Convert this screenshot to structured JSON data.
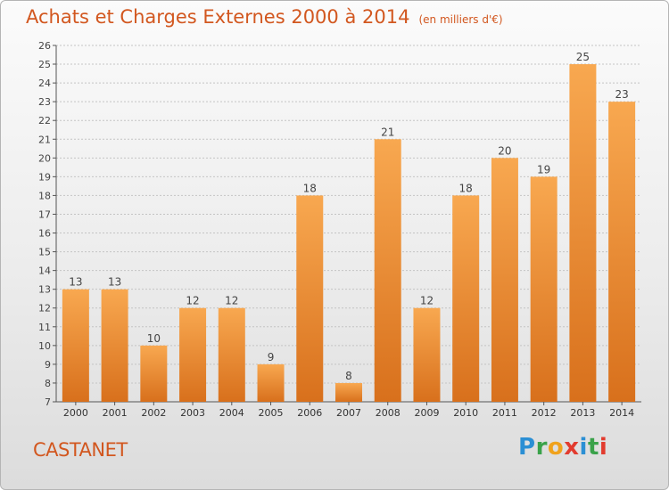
{
  "title": "Achats et Charges Externes 2000 à 2014",
  "subtitle": "(en milliers d'€)",
  "commune": "CASTANET",
  "logo": {
    "text": "Proxiti",
    "letter_colors": [
      "#2b8fd4",
      "#3aa24a",
      "#f0a21c",
      "#e23b2e",
      "#2b8fd4",
      "#3aa24a",
      "#e23b2e"
    ]
  },
  "colors": {
    "bar_top": "#f8a850",
    "bar_bottom": "#d8701c",
    "title": "#d2571f"
  },
  "chart_data": {
    "type": "bar",
    "categories": [
      "2000",
      "2001",
      "2002",
      "2003",
      "2004",
      "2005",
      "2006",
      "2007",
      "2008",
      "2009",
      "2010",
      "2011",
      "2012",
      "2013",
      "2014"
    ],
    "values": [
      13,
      13,
      10,
      12,
      12,
      9,
      18,
      8,
      21,
      12,
      18,
      20,
      19,
      25,
      23
    ],
    "ylim": [
      7,
      26
    ],
    "yticks": [
      7,
      8,
      9,
      10,
      11,
      12,
      13,
      14,
      15,
      16,
      17,
      18,
      19,
      20,
      21,
      22,
      23,
      24,
      25,
      26
    ],
    "grid": true,
    "data_labels": true
  }
}
